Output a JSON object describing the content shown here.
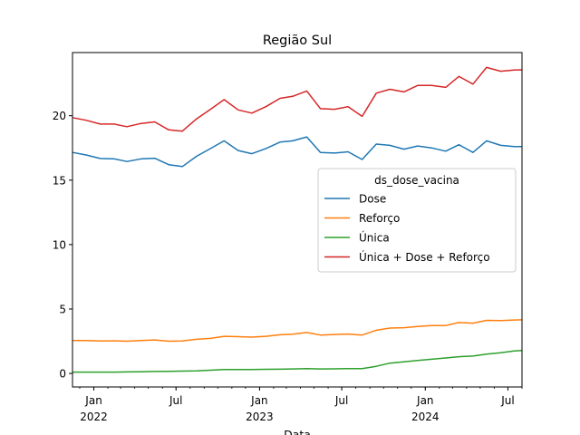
{
  "chart_data": {
    "type": "line",
    "title": "Região Sul",
    "xlabel": "Data",
    "ylabel": "",
    "ylim": [
      -1.05,
      24.9
    ],
    "xlim": [
      "2021-11-15",
      "2024-08-01"
    ],
    "yticks": [
      0,
      5,
      10,
      15,
      20
    ],
    "xticks": [
      {
        "date": "2022-01-01",
        "label": "Jan",
        "year": "2022"
      },
      {
        "date": "2022-07-01",
        "label": "Jul",
        "year": ""
      },
      {
        "date": "2023-01-01",
        "label": "Jan",
        "year": "2023"
      },
      {
        "date": "2023-07-01",
        "label": "Jul",
        "year": ""
      },
      {
        "date": "2024-01-01",
        "label": "Jan",
        "year": "2024"
      },
      {
        "date": "2024-07-01",
        "label": "Jul",
        "year": ""
      }
    ],
    "legend": {
      "title": "ds_dose_vacina",
      "placement": "center-right"
    },
    "grid": false,
    "x": [
      "2021-11-15",
      "2021-12-15",
      "2022-01-15",
      "2022-02-15",
      "2022-03-15",
      "2022-04-15",
      "2022-05-15",
      "2022-06-15",
      "2022-07-15",
      "2022-08-15",
      "2022-09-15",
      "2022-10-15",
      "2022-11-15",
      "2022-12-15",
      "2023-01-15",
      "2023-02-15",
      "2023-03-15",
      "2023-04-15",
      "2023-05-15",
      "2023-06-15",
      "2023-07-15",
      "2023-08-15",
      "2023-09-15",
      "2023-10-15",
      "2023-11-15",
      "2023-12-15",
      "2024-01-15",
      "2024-02-15",
      "2024-03-15",
      "2024-04-15",
      "2024-05-15",
      "2024-06-15",
      "2024-07-15",
      "2024-08-01"
    ],
    "series": [
      {
        "name": "Dose",
        "color": "#1f77b4",
        "values": [
          17.15,
          16.95,
          16.68,
          16.65,
          16.45,
          16.65,
          16.7,
          16.2,
          16.05,
          16.85,
          17.45,
          18.05,
          17.3,
          17.05,
          17.45,
          17.95,
          18.05,
          18.35,
          17.15,
          17.1,
          17.2,
          16.6,
          17.8,
          17.7,
          17.4,
          17.65,
          17.5,
          17.25,
          17.75,
          17.15,
          18.05,
          17.7,
          17.6,
          17.6
        ]
      },
      {
        "name": "Reforço",
        "color": "#ff7f0e",
        "values": [
          2.55,
          2.55,
          2.52,
          2.53,
          2.5,
          2.55,
          2.6,
          2.5,
          2.52,
          2.65,
          2.72,
          2.88,
          2.85,
          2.82,
          2.88,
          3.0,
          3.05,
          3.18,
          2.98,
          3.02,
          3.06,
          2.98,
          3.35,
          3.52,
          3.55,
          3.65,
          3.72,
          3.72,
          3.95,
          3.9,
          4.12,
          4.1,
          4.15,
          4.16
        ]
      },
      {
        "name": "Única",
        "color": "#2ca02c",
        "values": [
          0.1,
          0.1,
          0.1,
          0.1,
          0.12,
          0.13,
          0.15,
          0.17,
          0.18,
          0.2,
          0.25,
          0.3,
          0.3,
          0.3,
          0.32,
          0.33,
          0.35,
          0.38,
          0.35,
          0.36,
          0.38,
          0.38,
          0.55,
          0.8,
          0.9,
          1.0,
          1.1,
          1.2,
          1.3,
          1.35,
          1.5,
          1.6,
          1.75,
          1.78
        ]
      },
      {
        "name": "Única + Dose + Reforço",
        "color": "#d62728",
        "values": [
          19.85,
          19.65,
          19.35,
          19.35,
          19.15,
          19.4,
          19.52,
          18.9,
          18.8,
          19.75,
          20.5,
          21.25,
          20.45,
          20.2,
          20.7,
          21.35,
          21.5,
          21.92,
          20.55,
          20.5,
          20.7,
          19.95,
          21.75,
          22.05,
          21.85,
          22.35,
          22.35,
          22.2,
          23.05,
          22.45,
          23.75,
          23.45,
          23.55,
          23.56
        ]
      }
    ]
  }
}
